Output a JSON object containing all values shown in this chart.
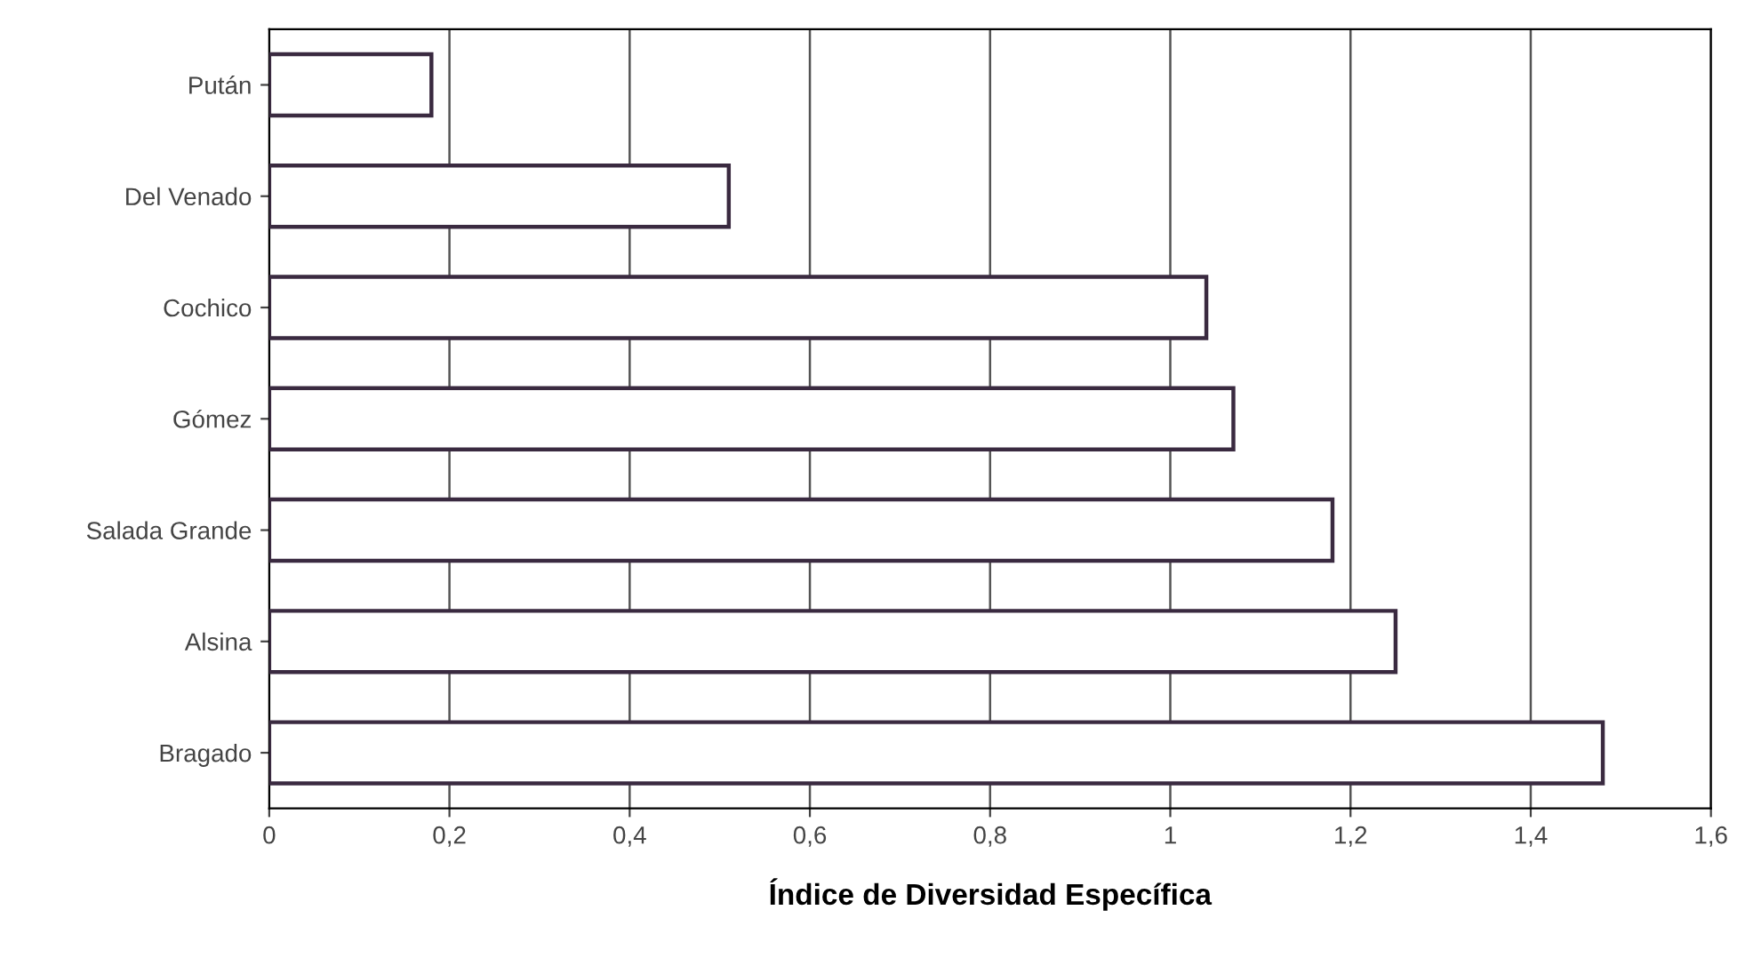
{
  "chart_data": {
    "type": "bar",
    "orientation": "horizontal",
    "xlabel": "Índice de Diversidad Específica",
    "categories": [
      "Pután",
      "Del Venado",
      "Cochico",
      "Gómez",
      "Salada Grande",
      "Alsina",
      "Bragado"
    ],
    "values": [
      0.18,
      0.51,
      1.04,
      1.07,
      1.18,
      1.25,
      1.48
    ],
    "color": "#ffffff",
    "xlim": [
      0,
      1.6
    ],
    "xticks": [
      0,
      {
        "value": 0.2,
        "label": "0,2"
      },
      {
        "value": 0.4,
        "label": "0,4"
      },
      {
        "value": 0.6,
        "label": "0,6"
      },
      {
        "value": 0.8,
        "label": "0,8"
      },
      1,
      {
        "value": 1.2,
        "label": "1,2"
      },
      {
        "value": 1.4,
        "label": "1,4"
      },
      {
        "value": 1.6,
        "label": "1,6"
      }
    ],
    "grid": "x"
  }
}
